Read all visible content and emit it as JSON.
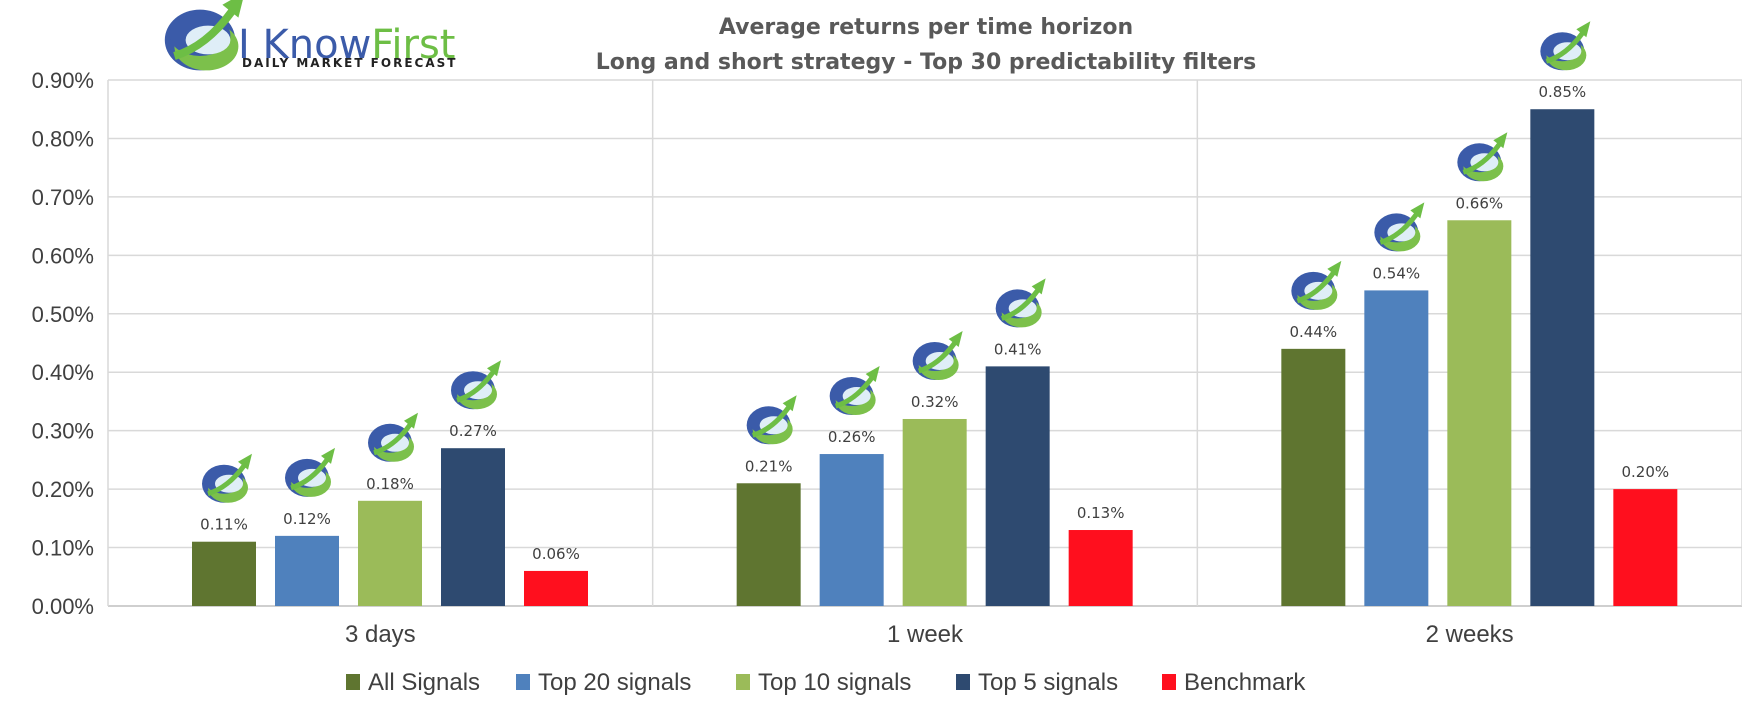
{
  "logo": {
    "word1": "I Know",
    "word2": "First",
    "tagline": "DAILY MARKET FORECAST",
    "colors": {
      "blue": "#3B5BA9",
      "green": "#6DBE45"
    }
  },
  "chart_data": {
    "type": "bar",
    "title": "Average returns per time horizon",
    "subtitle": "Long and short strategy - Top 30  predictability filters",
    "categories": [
      "3 days",
      "1 week",
      "2 weeks"
    ],
    "series": [
      {
        "name": "All Signals",
        "color": "#5F7530",
        "values": [
          0.11,
          0.21,
          0.44
        ],
        "labels": [
          "0.11%",
          "0.21%",
          "0.44%"
        ]
      },
      {
        "name": "Top 20 signals",
        "color": "#4F81BD",
        "values": [
          0.12,
          0.26,
          0.54
        ],
        "labels": [
          "0.12%",
          "0.26%",
          "0.54%"
        ]
      },
      {
        "name": "Top 10 signals",
        "color": "#9BBB59",
        "values": [
          0.18,
          0.32,
          0.66
        ],
        "labels": [
          "0.18%",
          "0.32%",
          "0.66%"
        ]
      },
      {
        "name": "Top 5 signals",
        "color": "#2E4A70",
        "values": [
          0.27,
          0.41,
          0.85
        ],
        "labels": [
          "0.27%",
          "0.41%",
          "0.85%"
        ]
      },
      {
        "name": "Benchmark",
        "color": "#FF0F1E",
        "values": [
          0.06,
          0.13,
          0.2
        ],
        "labels": [
          "0.06%",
          "0.13%",
          "0.20%"
        ]
      }
    ],
    "y_ticks": [
      "0.00%",
      "0.10%",
      "0.20%",
      "0.30%",
      "0.40%",
      "0.50%",
      "0.60%",
      "0.70%",
      "0.80%",
      "0.90%"
    ],
    "ylim": [
      0,
      0.9
    ],
    "xlabel": "",
    "ylabel": "",
    "grid": true,
    "legend": "bottom",
    "marker_icon": "i-know-first-logo-icon",
    "marker_series": [
      "All Signals",
      "Top 20 signals",
      "Top 10 signals",
      "Top 5 signals"
    ]
  }
}
